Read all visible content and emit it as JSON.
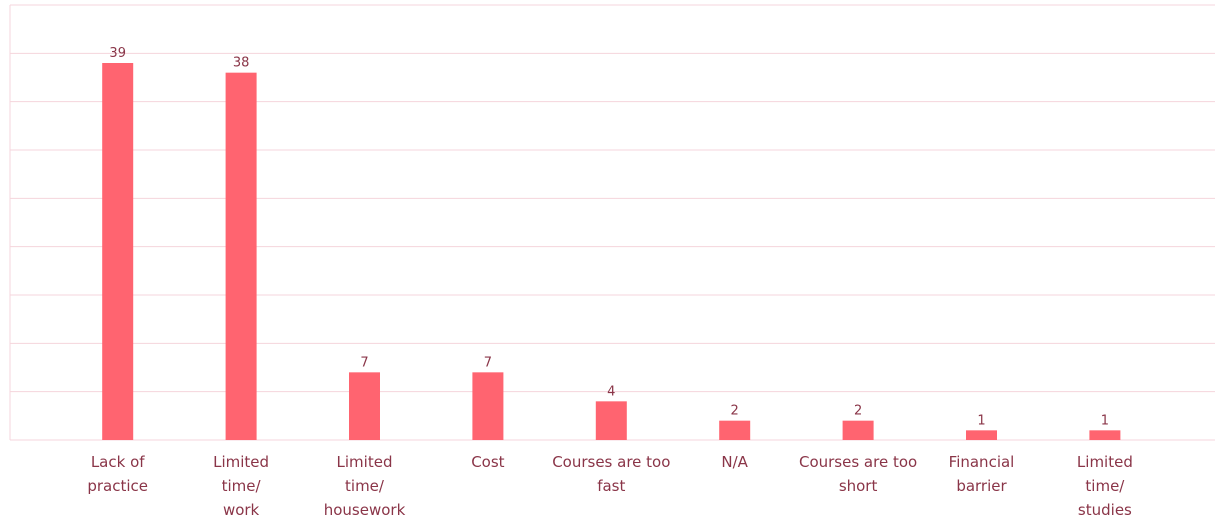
{
  "chart_data": {
    "type": "bar",
    "categories": [
      "Lack of\npractice",
      "Limited\ntime/\nwork",
      "Limited\ntime/\nhousework",
      "Cost",
      "Courses are too\nfast",
      "N/A",
      "Courses are too\nshort",
      "Financial\nbarrier",
      "Limited\ntime/\nstudies"
    ],
    "values": [
      39,
      38,
      7,
      7,
      4,
      2,
      2,
      1,
      1
    ],
    "color": "#ff6470",
    "ylim": [
      0,
      45
    ],
    "yticks": [
      0,
      5,
      10,
      15,
      20,
      25,
      30,
      35,
      40,
      45
    ],
    "grid": true
  }
}
